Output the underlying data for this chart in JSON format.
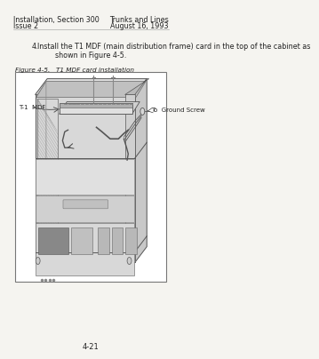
{
  "bg_color": "#ffffff",
  "page_bg": "#f5f4f0",
  "top_left_line1": "Installation, Section 300",
  "top_left_line2": "Issue 2",
  "top_right_line1": "Trunks and Lines",
  "top_right_line2": "August 16, 1993",
  "step_indent": 40,
  "step_number": "4.",
  "step_body": "Install the T1 MDF (main distribution frame) card in the top of the cabinet as\n        shown in Figure 4-5.",
  "figure_caption": "Figure 4-5.   T1 MDF card installation",
  "label_t1_mdf": "T-1  MDF",
  "label_ground": "To  Ground Screw",
  "page_number": "4-21",
  "text_color": "#222222",
  "caption_color": "#444444",
  "fig_border": "#777777",
  "cab_front_face": "#d4d4d4",
  "cab_top_face": "#e8e8e8",
  "cab_right_face": "#b8b8b8",
  "cab_inner": "#c8c8c8",
  "cab_line": "#555555",
  "grille_color": "#aaaaaa",
  "card_color": "#cccccc",
  "wire_color": "#444444"
}
